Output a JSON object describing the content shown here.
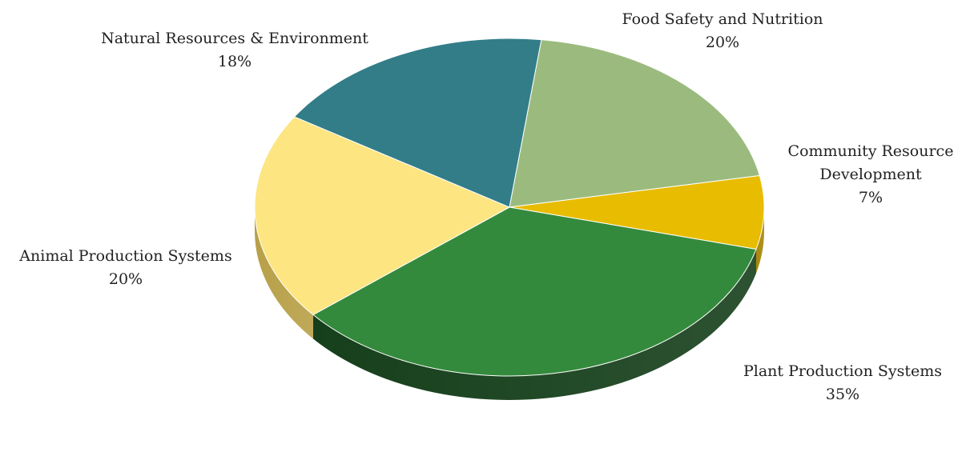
{
  "chart_data": {
    "type": "pie",
    "title": "",
    "legend": "none",
    "slices": [
      {
        "label": "Food Safety and Nutrition",
        "value": 20,
        "value_label": "20%",
        "color": "#9bbb7e",
        "side_color": "#6f8a57"
      },
      {
        "label": "Community Resource Development",
        "value": 7,
        "value_label": "7%",
        "color": "#e8bc00",
        "side_color": "#a7870a"
      },
      {
        "label": "Plant Production Systems",
        "value": 35,
        "value_label": "35%",
        "color": "#348a3c",
        "side_color": "#163f1b"
      },
      {
        "label": "Animal Production Systems",
        "value": 20,
        "value_label": "20%",
        "color": "#fde582",
        "side_color": "#b8a048"
      },
      {
        "label": "Natural Resources & Environment",
        "value": 18,
        "value_label": "18%",
        "color": "#327d88",
        "side_color": "#1f5259"
      }
    ]
  }
}
